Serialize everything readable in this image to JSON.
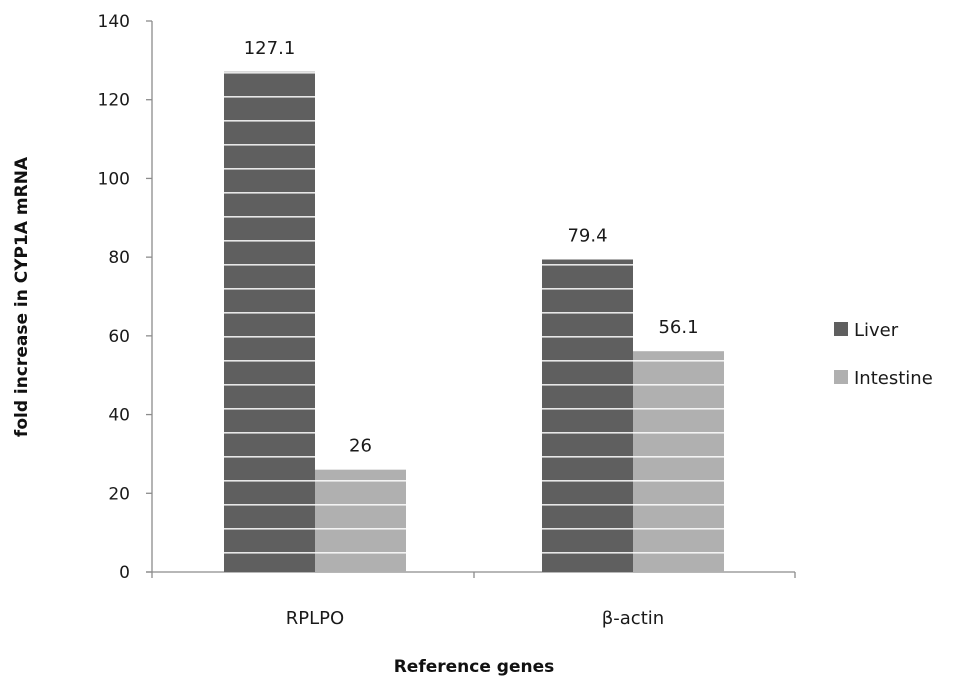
{
  "chart_data": {
    "type": "bar",
    "title": "",
    "xlabel": "Reference genes",
    "ylabel": "fold increase in CYP1A mRNA",
    "categories": [
      "RPLPO",
      "β-actin"
    ],
    "series": [
      {
        "name": "Liver",
        "values": [
          127.1,
          79.4
        ],
        "labels": [
          "127.1",
          "79.4"
        ],
        "color": "#5f5f5f"
      },
      {
        "name": "Intestine",
        "values": [
          26,
          56.1
        ],
        "labels": [
          "26",
          "56.1"
        ],
        "color": "#b0b0b0"
      }
    ],
    "ylim": [
      0,
      140
    ],
    "yticks": [
      0,
      20,
      40,
      60,
      80,
      100,
      120,
      140
    ],
    "grid": false,
    "legend_position": "right"
  }
}
